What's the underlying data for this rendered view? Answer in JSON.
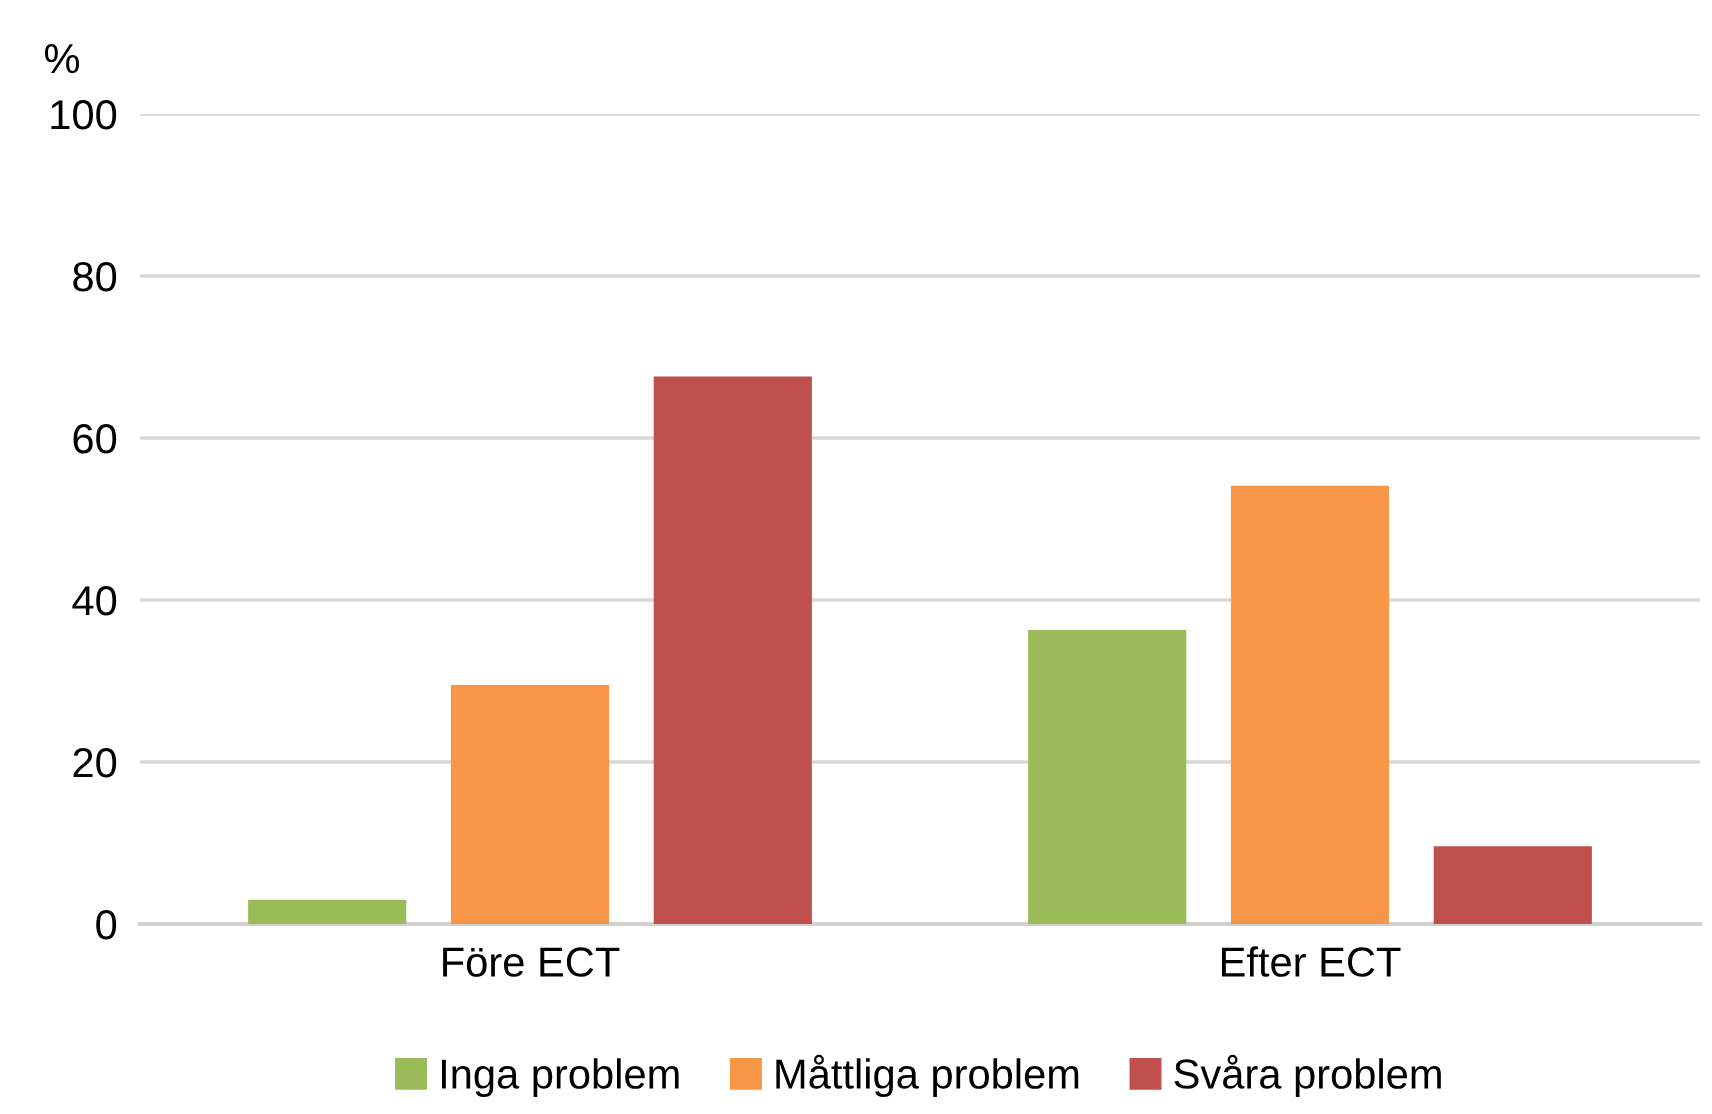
{
  "chart_data": {
    "type": "bar",
    "ylabel": "%",
    "categories": [
      "Före ECT",
      "Efter ECT"
    ],
    "series": [
      {
        "name": "Inga problem",
        "color": "#9bbb59",
        "values": [
          3,
          36.3
        ]
      },
      {
        "name": "Måttliga problem",
        "color": "#f79646",
        "values": [
          29.5,
          54.1
        ]
      },
      {
        "name": "Svåra problem",
        "color": "#c0504d",
        "values": [
          67.6,
          9.6
        ]
      }
    ],
    "ylim": [
      0,
      100
    ],
    "yticks": [
      0,
      20,
      40,
      60,
      80,
      100
    ],
    "grid": "y",
    "legend": "bottom"
  }
}
